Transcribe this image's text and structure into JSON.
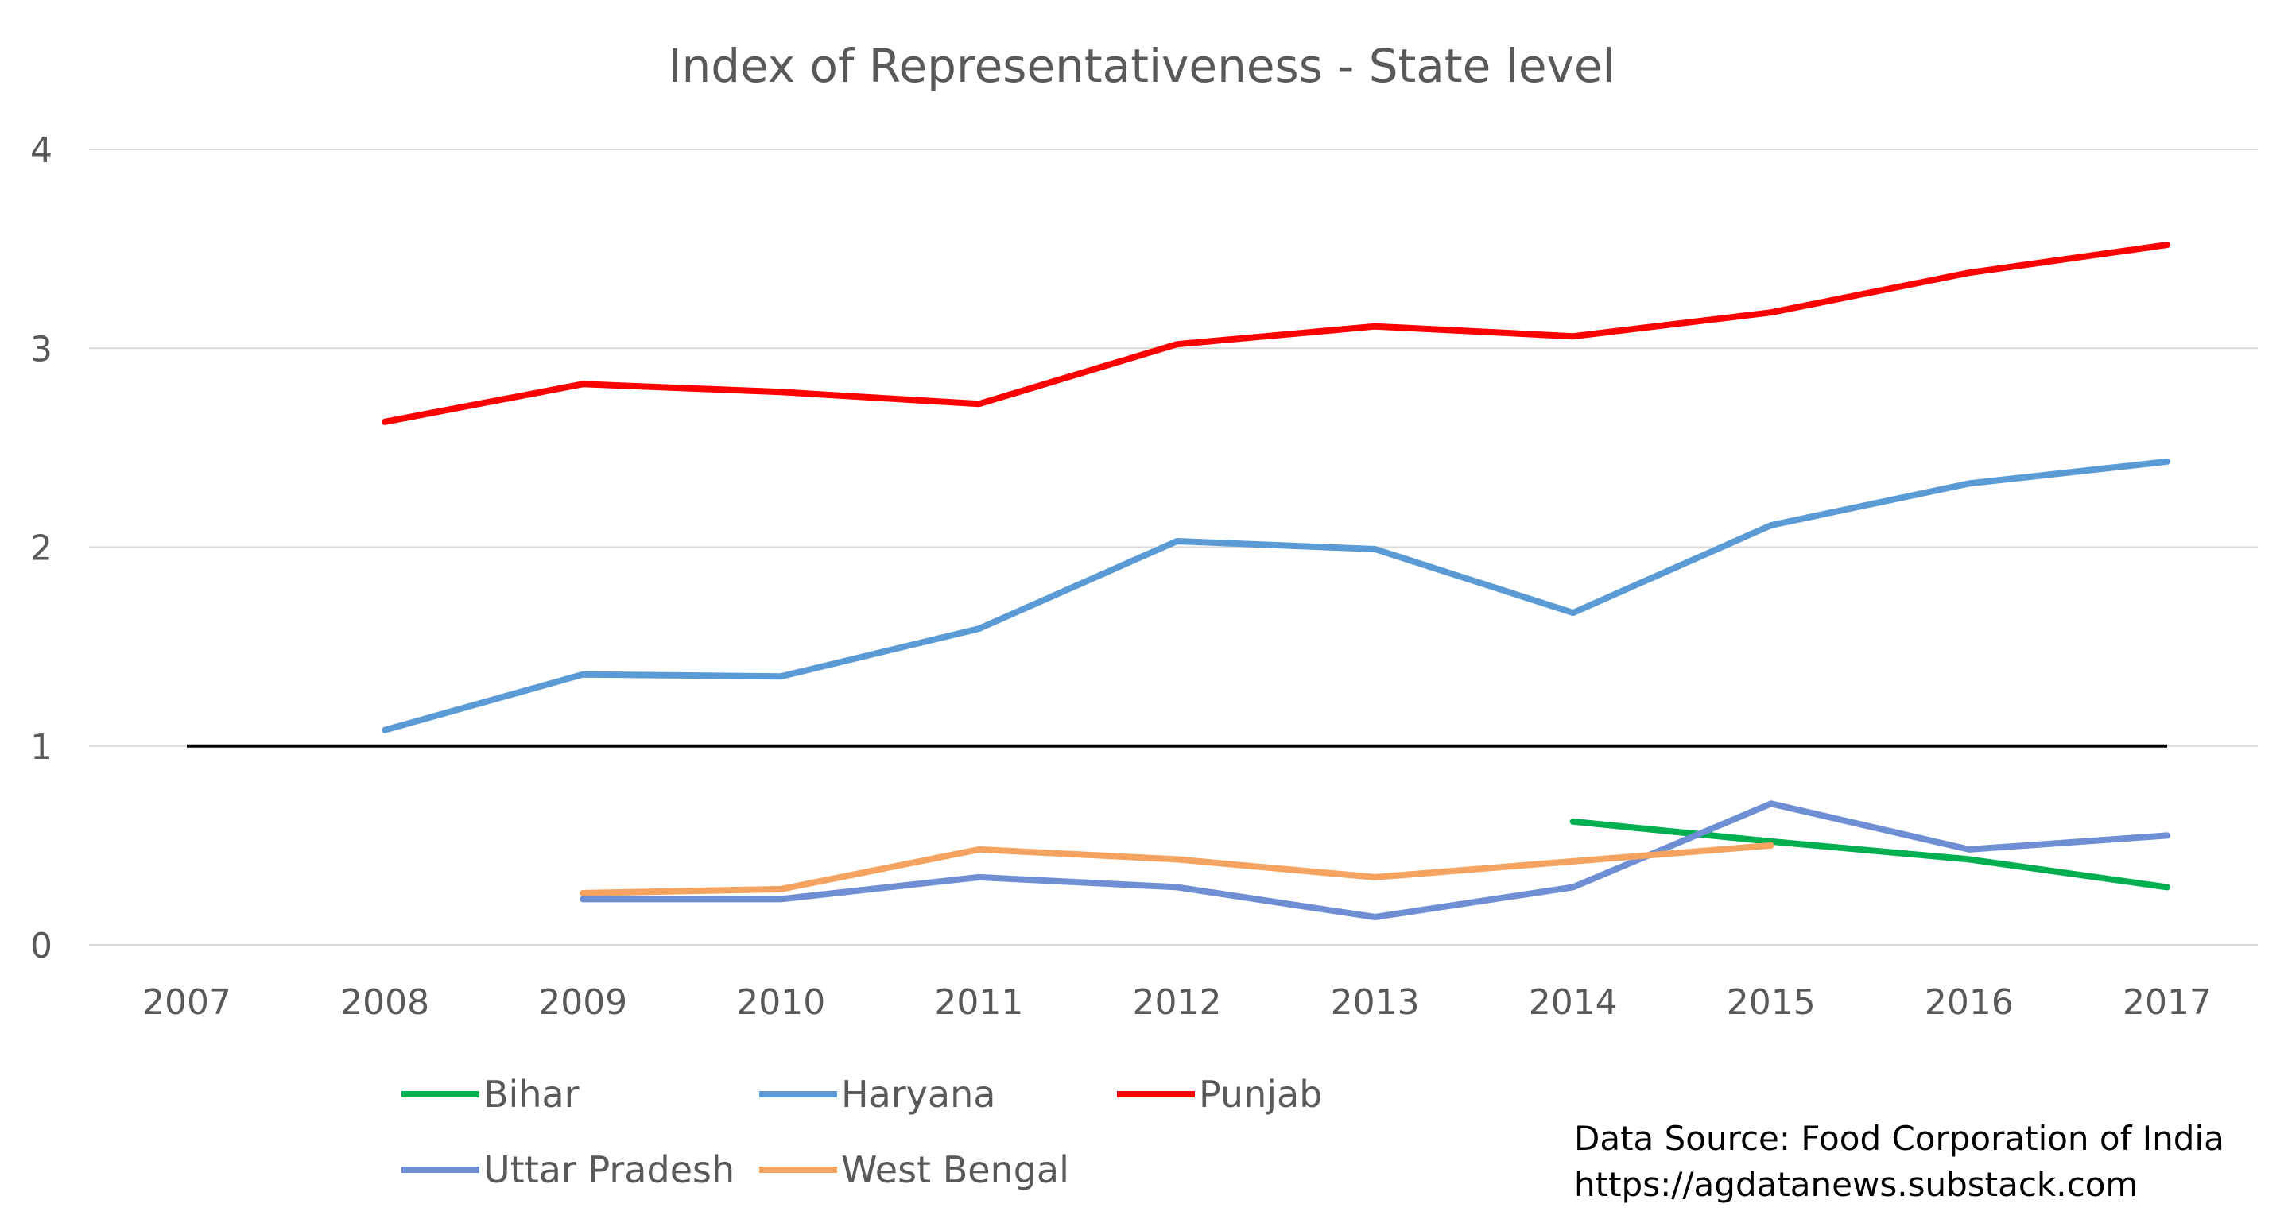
{
  "chart_data": {
    "type": "line",
    "title": "Index of Representativeness - State level",
    "xlabel": "",
    "ylabel": "",
    "categories": [
      "2007",
      "2008",
      "2009",
      "2010",
      "2011",
      "2012",
      "2013",
      "2014",
      "2015",
      "2016",
      "2017"
    ],
    "ylim": [
      0,
      4
    ],
    "yticks": [
      "0",
      "1",
      "2",
      "3",
      "4"
    ],
    "grid": true,
    "reference_line": {
      "value": 1,
      "from": "2007",
      "to": "2017",
      "color": "#000000"
    },
    "series": [
      {
        "name": "Bihar",
        "color": "#00b050",
        "values": [
          null,
          null,
          null,
          null,
          null,
          null,
          null,
          0.62,
          0.52,
          0.43,
          0.29
        ]
      },
      {
        "name": "Haryana",
        "color": "#5b9bd5",
        "values": [
          null,
          1.08,
          1.36,
          1.35,
          1.59,
          2.03,
          1.99,
          1.67,
          2.11,
          2.32,
          2.43
        ]
      },
      {
        "name": "Punjab",
        "color": "#ff0000",
        "values": [
          null,
          2.63,
          2.82,
          2.78,
          2.72,
          3.02,
          3.11,
          3.06,
          3.18,
          3.38,
          3.52
        ]
      },
      {
        "name": "Uttar Pradesh",
        "color": "#6f8fd4",
        "values": [
          null,
          null,
          0.23,
          0.23,
          0.34,
          0.29,
          0.14,
          0.29,
          0.71,
          0.48,
          0.55
        ]
      },
      {
        "name": "West Bengal",
        "color": "#f4a460",
        "values": [
          null,
          null,
          0.26,
          0.28,
          0.48,
          0.43,
          0.34,
          0.42,
          0.5,
          null,
          null
        ]
      }
    ],
    "legend": {
      "position": "bottom",
      "entries": [
        "Bihar",
        "Haryana",
        "Punjab",
        "Uttar Pradesh",
        "West Bengal"
      ]
    },
    "annotations": [
      "Data Source: Food Corporation of India",
      "https://agdatanews.substack.com"
    ]
  }
}
